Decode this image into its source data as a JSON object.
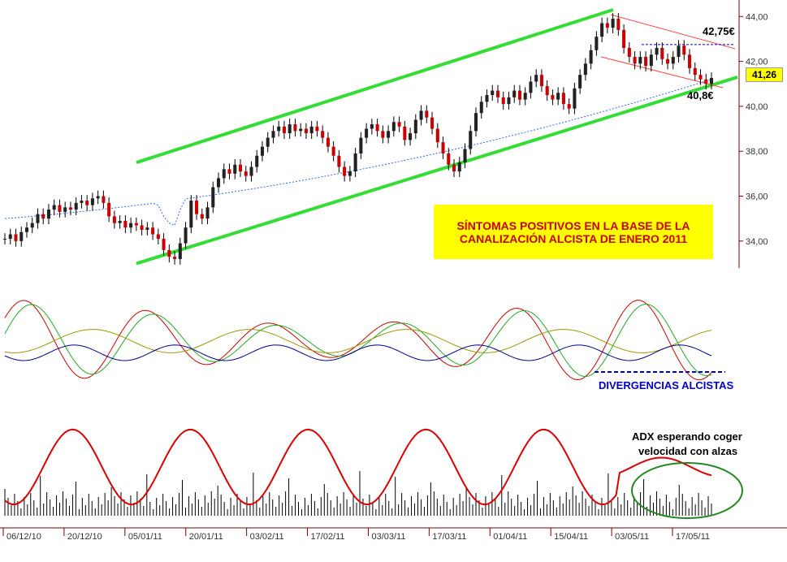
{
  "chart_data": {
    "type": "line",
    "price_panel": {
      "ylim": [
        32.8,
        44.3
      ],
      "y_ticks": [
        "44,00",
        "42,00",
        "40,00",
        "38,00",
        "36,00",
        "34,00"
      ],
      "last_value": "41,26",
      "candles_close": [
        34.1,
        34.3,
        34.0,
        34.4,
        34.6,
        34.8,
        35.2,
        35.0,
        35.4,
        35.6,
        35.3,
        35.5,
        35.4,
        35.7,
        35.8,
        35.6,
        35.9,
        36.0,
        35.7,
        35.1,
        34.8,
        34.9,
        34.6,
        34.8,
        34.7,
        34.5,
        34.6,
        34.3,
        34.1,
        33.6,
        33.3,
        33.2,
        33.9,
        34.6,
        35.8,
        35.2,
        35.0,
        35.5,
        36.4,
        36.8,
        37.2,
        37.0,
        37.4,
        37.1,
        36.9,
        37.3,
        37.8,
        38.2,
        38.6,
        38.9,
        39.1,
        38.8,
        39.2,
        38.9,
        39.0,
        38.8,
        39.1,
        38.9,
        38.6,
        38.2,
        37.8,
        37.3,
        36.9,
        37.1,
        37.9,
        38.6,
        39.0,
        39.2,
        38.9,
        38.6,
        38.9,
        39.3,
        39.1,
        38.5,
        38.8,
        39.4,
        39.8,
        39.5,
        39.0,
        38.4,
        37.9,
        37.4,
        37.1,
        37.5,
        38.1,
        38.9,
        39.7,
        40.2,
        40.5,
        40.7,
        40.4,
        40.1,
        40.4,
        40.7,
        40.3,
        40.6,
        41.1,
        41.4,
        40.9,
        40.5,
        40.3,
        40.6,
        40.1,
        39.9,
        40.8,
        41.4,
        41.9,
        42.5,
        43.1,
        43.7,
        43.5,
        43.9,
        43.4,
        42.6,
        42.2,
        41.9,
        42.2,
        41.8,
        42.3,
        42.6,
        42.1,
        41.9,
        42.2,
        42.7,
        42.3,
        41.7,
        41.4,
        41.2,
        41.0,
        41.26
      ],
      "ma_start": 35.0,
      "ma_end": 41.2,
      "upper_channel": [
        37.5,
        44.3
      ],
      "lower_channel": [
        33.0,
        41.3
      ],
      "resistance_label": "42,75€",
      "support_label": "40,8€"
    },
    "x_tick_labels": [
      "06/12/10",
      "20/12/10",
      "05/01/11",
      "20/01/11",
      "03/02/11",
      "17/02/11",
      "03/03/11",
      "17/03/11",
      "01/04/11",
      "15/04/11",
      "03/05/11",
      "17/05/11"
    ],
    "annotations": {
      "banner_line1": "SÍNTOMAS POSITIVOS EN LA BASE DE LA",
      "banner_line2": "CANALIZACIÓN ALCISTA  DE ENERO 2011",
      "divergence": "DIVERGENCIAS ALCISTAS",
      "adx_line1": "ADX esperando coger",
      "adx_line2": "velocidad con alzas"
    },
    "colors": {
      "channel": "#33dd33",
      "candle_up": "#222222",
      "candle_down": "#cc0000",
      "ma": "#3366ff",
      "adx": "#dd0000",
      "banner": "#ffff00",
      "banner_text": "#cc0000",
      "divergence_text": "#0000cc",
      "resistance": "#0000cc",
      "trend_red": "#ff4444",
      "osc_green": "#22aa22",
      "osc_olive": "#999900",
      "osc_navy": "#000088"
    }
  }
}
